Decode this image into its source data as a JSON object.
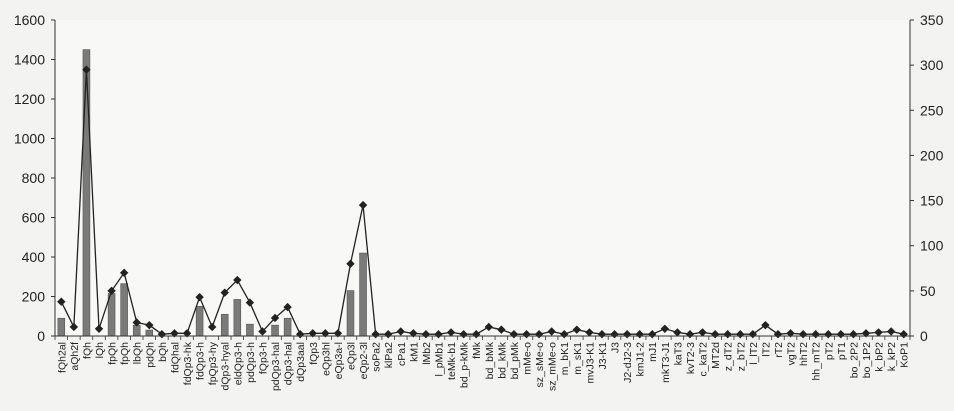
{
  "chart_data": {
    "type": "bar+line",
    "title": "",
    "xlabel": "",
    "ylabel": "",
    "grid": false,
    "legend": "none",
    "y_left": {
      "lim": [
        0,
        1600
      ],
      "ticks": [
        "0",
        "200",
        "400",
        "600",
        "800",
        "1000",
        "1200",
        "1400",
        "1600"
      ]
    },
    "y_right": {
      "lim": [
        0,
        350
      ],
      "ticks": [
        "0",
        "50",
        "100",
        "150",
        "200",
        "250",
        "300",
        "350"
      ]
    },
    "categories": [
      "fQh2al",
      "aQh2f",
      "fQh",
      "lQh",
      "fpQh",
      "fpQh",
      "lbQh",
      "pdQh",
      "bQh",
      "fdQhal",
      "fdQp3-hk",
      "fdQp3-h",
      "fpQp3-hy",
      "dQp3-hyal",
      "eldQp3-h",
      "pdQp3-h",
      "fQp3-h",
      "pdQp3-hal",
      "dQp3-hal",
      "dQp3aal",
      "fQp3",
      "eQp3hl",
      "eQp3a-l",
      "eQp3l",
      "eQp2-3l",
      "soPa2",
      "klPa2",
      "cPa1",
      "kM1",
      "lMb2",
      "l_pMb1",
      "teMk-b1",
      "bd_p-kMk",
      "fMk",
      "bd_bMk",
      "bd_kMk",
      "bd_pMk",
      "mMe-o",
      "sz_sMe-o",
      "sz_mMe-o",
      "m_bK1",
      "m_sK1",
      "mvJ3-K1",
      "J3-K1",
      "J3",
      "J2-dJ2-3",
      "kmJ1-2",
      "mJ1",
      "mkT3-J1",
      "kaT3",
      "kvT2-3",
      "c_kaT2",
      "MT2d",
      "z_dT2",
      "z_bT2",
      "l_lT2",
      "lT2",
      "rT2",
      "vgT2",
      "hhT2",
      "hh_mT2",
      "pT2",
      "pT1",
      "bo_2P2",
      "bo_1P2",
      "k_bP2",
      "k_kP2",
      "KoP1"
    ],
    "series": [
      {
        "kind": "bar",
        "axis": "left",
        "color": "#7a7a7a",
        "values": [
          90,
          0,
          1450,
          0,
          215,
          265,
          55,
          30,
          0,
          0,
          0,
          150,
          0,
          110,
          185,
          60,
          0,
          55,
          90,
          0,
          0,
          0,
          0,
          230,
          420,
          0,
          0,
          0,
          0,
          0,
          0,
          0,
          0,
          0,
          0,
          0,
          0,
          0,
          0,
          0,
          0,
          0,
          0,
          0,
          0,
          0,
          0,
          0,
          0,
          0,
          0,
          0,
          0,
          0,
          0,
          0,
          0,
          0,
          0,
          0,
          0,
          0,
          0,
          0,
          0,
          0,
          0,
          0
        ]
      },
      {
        "kind": "line",
        "marker": "diamond",
        "axis": "right",
        "color": "#222222",
        "values": [
          38,
          10,
          295,
          8,
          50,
          70,
          15,
          12,
          2,
          3,
          3,
          43,
          10,
          48,
          62,
          37,
          5,
          20,
          32,
          2,
          3,
          3,
          3,
          80,
          145,
          2,
          2,
          5,
          3,
          2,
          2,
          4,
          2,
          2,
          10,
          7,
          2,
          2,
          2,
          5,
          2,
          7,
          4,
          2,
          2,
          2,
          2,
          2,
          8,
          4,
          2,
          4,
          2,
          2,
          2,
          2,
          12,
          2,
          3,
          2,
          2,
          2,
          2,
          2,
          3,
          4,
          5,
          2
        ]
      }
    ]
  }
}
